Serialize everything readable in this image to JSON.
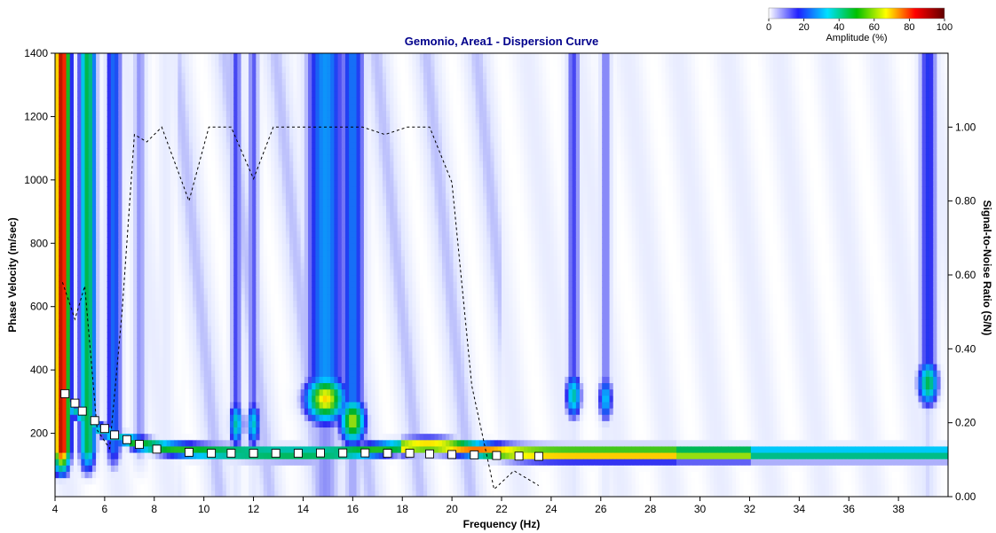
{
  "chart_data": {
    "type": "heatmap",
    "title": "Gemonio, Area1 - Dispersion Curve",
    "xlabel": "Frequency (Hz)",
    "ylabel": "Phase Velocity (m/sec)",
    "y2label": "Signal-to-Noise Ratio (S/N)",
    "xlim": [
      4,
      40
    ],
    "ylim": [
      0,
      1400
    ],
    "y2lim": [
      0,
      1.2
    ],
    "xticks": [
      4,
      6,
      8,
      10,
      12,
      14,
      16,
      18,
      20,
      22,
      24,
      26,
      28,
      30,
      32,
      34,
      36,
      38
    ],
    "yticks": [
      200,
      400,
      600,
      800,
      1000,
      1200,
      1400
    ],
    "y2ticks": [
      0.0,
      0.2,
      0.4,
      0.6,
      0.8,
      1.0
    ],
    "y2tick_labels": [
      "0.00",
      "0.20",
      "0.40",
      "0.60",
      "0.80",
      "1.00"
    ],
    "colorbar": {
      "label": "Amplitude (%)",
      "ticks": [
        0,
        20,
        40,
        60,
        80,
        100
      ],
      "colors": [
        "#ffffff",
        "#2020ff",
        "#00e0ff",
        "#00c000",
        "#ffff00",
        "#ff0000",
        "#600000"
      ]
    },
    "grid": false,
    "dispersion_curve": {
      "name": "Dispersion Curve",
      "x": [
        4.4,
        4.8,
        5.1,
        5.6,
        6.0,
        6.4,
        6.9,
        7.4,
        8.1,
        9.4,
        10.3,
        11.1,
        12.0,
        12.9,
        13.8,
        14.7,
        15.6,
        16.5,
        17.4,
        18.3,
        19.1,
        20.0,
        20.9,
        21.8,
        22.7,
        23.5
      ],
      "y": [
        325,
        295,
        270,
        240,
        215,
        195,
        180,
        165,
        150,
        140,
        137,
        137,
        137,
        137,
        137,
        138,
        138,
        138,
        137,
        137,
        135,
        133,
        132,
        130,
        128,
        127
      ]
    },
    "snr_curve": {
      "name": "Signal-to-Noise Ratio (S/N)",
      "x": [
        4.3,
        4.8,
        5.2,
        5.7,
        6.2,
        6.7,
        7.2,
        7.7,
        8.3,
        9.4,
        10.2,
        11.1,
        12.0,
        12.8,
        13.7,
        14.6,
        15.5,
        16.4,
        17.3,
        18.2,
        19.1,
        20.0,
        20.8,
        21.7,
        22.5,
        23.5
      ],
      "y": [
        0.58,
        0.48,
        0.57,
        0.18,
        0.13,
        0.5,
        0.98,
        0.96,
        1.0,
        0.8,
        1.0,
        1.0,
        0.86,
        1.0,
        1.0,
        1.0,
        1.0,
        1.0,
        0.98,
        1.0,
        1.0,
        0.85,
        0.3,
        0.02,
        0.07,
        0.03
      ]
    }
  }
}
